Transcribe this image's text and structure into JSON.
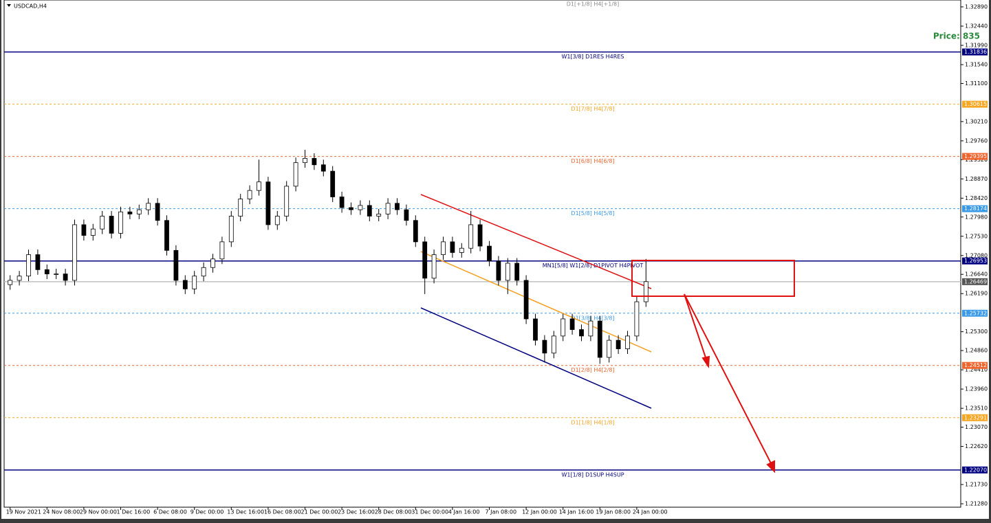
{
  "chart_data": {
    "type": "candlestick",
    "title": "USDCAD,H4",
    "annotation": "Price: 835",
    "top_label": "D1[+1/8] H4[+1/8]",
    "categories": [
      "19 Nov 2021",
      null,
      null,
      null,
      "24 Nov 08:00",
      null,
      null,
      null,
      "29 Nov 00:00",
      null,
      null,
      null,
      "1 Dec 16:00",
      null,
      null,
      null,
      "6 Dec 08:00",
      null,
      null,
      null,
      "9 Dec 00:00",
      null,
      null,
      null,
      "13 Dec 16:00",
      null,
      null,
      null,
      "16 Dec 08:00",
      null,
      null,
      null,
      "21 Dec 00:00",
      null,
      null,
      null,
      "23 Dec 16:00",
      null,
      null,
      null,
      "28 Dec 08:00",
      null,
      null,
      null,
      "31 Dec 00:00",
      null,
      null,
      null,
      "4 Jan 16:00",
      null,
      null,
      null,
      "7 Jan 08:00",
      null,
      null,
      null,
      "12 Jan 00:00",
      null,
      null,
      null,
      "14 Jan 16:00",
      null,
      null,
      null,
      "19 Jan 08:00",
      null,
      null,
      null,
      "24 Jan 00:00",
      null
    ],
    "open": [
      1.264,
      1.265,
      1.266,
      1.271,
      1.2675,
      1.2665,
      1.2665,
      1.265,
      1.278,
      1.2755,
      1.277,
      1.28,
      1.276,
      1.281,
      1.2805,
      1.2815,
      1.283,
      1.279,
      1.272,
      1.265,
      1.263,
      1.266,
      1.268,
      1.27,
      1.274,
      1.28,
      1.284,
      1.286,
      1.288,
      1.278,
      1.28,
      1.287,
      1.2925,
      1.2935,
      1.292,
      1.2905,
      1.2845,
      1.282,
      1.2815,
      1.2825,
      1.28,
      1.2805,
      1.283,
      1.2815,
      1.279,
      1.274,
      1.2655,
      1.271,
      1.274,
      1.2715,
      1.2725,
      1.278,
      1.273,
      1.2695,
      1.265,
      1.269,
      1.265,
      1.256,
      1.251,
      1.248,
      1.252,
      1.256,
      1.2535,
      1.252,
      1.2555,
      1.247,
      1.251,
      1.249,
      1.252,
      1.26
    ],
    "high": [
      1.2662,
      1.2672,
      1.2722,
      1.2722,
      1.2687,
      1.2677,
      1.2677,
      1.2792,
      1.2792,
      1.2782,
      1.2812,
      1.2812,
      1.2822,
      1.2822,
      1.2827,
      1.2842,
      1.2842,
      1.2802,
      1.2732,
      1.2662,
      1.2672,
      1.2692,
      1.2712,
      1.2752,
      1.2812,
      1.2852,
      1.2872,
      1.2932,
      1.2892,
      1.2812,
      1.2882,
      1.2937,
      1.2955,
      1.2947,
      1.2932,
      1.2917,
      1.2857,
      1.2832,
      1.2837,
      1.2837,
      1.2817,
      1.2842,
      1.2842,
      1.2827,
      1.2802,
      1.2752,
      1.2722,
      1.2752,
      1.2752,
      1.2737,
      1.2812,
      1.2792,
      1.2742,
      1.2707,
      1.2702,
      1.2702,
      1.2662,
      1.2572,
      1.2522,
      1.2532,
      1.2572,
      1.2572,
      1.2547,
      1.2567,
      1.2567,
      1.2522,
      1.2522,
      1.2532,
      1.2612,
      1.27
    ],
    "low": [
      1.2628,
      1.2638,
      1.2648,
      1.2663,
      1.2653,
      1.2653,
      1.2638,
      1.2638,
      1.2743,
      1.2743,
      1.2758,
      1.2748,
      1.2748,
      1.2793,
      1.2793,
      1.2803,
      1.2778,
      1.2708,
      1.2638,
      1.2618,
      1.2618,
      1.2648,
      1.2668,
      1.2688,
      1.2728,
      1.2788,
      1.2828,
      1.2848,
      1.2768,
      1.2768,
      1.2788,
      1.2858,
      1.2913,
      1.2908,
      1.2893,
      1.2833,
      1.2808,
      1.2803,
      1.2803,
      1.2788,
      1.2788,
      1.2793,
      1.2803,
      1.2778,
      1.2728,
      1.2618,
      1.2643,
      1.2698,
      1.2703,
      1.2703,
      1.2713,
      1.2718,
      1.2683,
      1.2638,
      1.2618,
      1.2638,
      1.2548,
      1.2498,
      1.2458,
      1.2468,
      1.2508,
      1.2523,
      1.2508,
      1.2508,
      1.2455,
      1.2458,
      1.2478,
      1.2478,
      1.2508,
      1.2588
    ],
    "close": [
      1.265,
      1.266,
      1.271,
      1.2675,
      1.2665,
      1.2665,
      1.265,
      1.278,
      1.2755,
      1.277,
      1.28,
      1.276,
      1.281,
      1.2805,
      1.2815,
      1.283,
      1.279,
      1.272,
      1.265,
      1.263,
      1.266,
      1.268,
      1.27,
      1.274,
      1.28,
      1.284,
      1.286,
      1.288,
      1.278,
      1.28,
      1.287,
      1.2925,
      1.2935,
      1.292,
      1.2905,
      1.2845,
      1.282,
      1.2815,
      1.2825,
      1.28,
      1.2805,
      1.283,
      1.2815,
      1.279,
      1.274,
      1.2655,
      1.271,
      1.274,
      1.2715,
      1.2725,
      1.278,
      1.273,
      1.2695,
      1.265,
      1.269,
      1.265,
      1.256,
      1.251,
      1.248,
      1.252,
      1.256,
      1.2535,
      1.252,
      1.2555,
      1.247,
      1.251,
      1.249,
      1.252,
      1.26,
      1.2647
    ],
    "ylim": [
      1.212,
      1.3305
    ],
    "yticks": [
      {
        "value": 1.3289,
        "label": "1.32890"
      },
      {
        "value": 1.3244,
        "label": "1.32440"
      },
      {
        "value": 1.3199,
        "label": "1.31990"
      },
      {
        "value": 1.3154,
        "label": "1.31540"
      },
      {
        "value": 1.311,
        "label": "1.31100"
      },
      {
        "value": 1.3021,
        "label": "1.30210"
      },
      {
        "value": 1.2976,
        "label": "1.29760"
      },
      {
        "value": 1.2932,
        "label": "1.29320"
      },
      {
        "value": 1.2887,
        "label": "1.28870"
      },
      {
        "value": 1.2842,
        "label": "1.28420"
      },
      {
        "value": 1.2798,
        "label": "1.27980"
      },
      {
        "value": 1.2753,
        "label": "1.27530"
      },
      {
        "value": 1.2708,
        "label": "1.27080"
      },
      {
        "value": 1.2664,
        "label": "1.26640"
      },
      {
        "value": 1.2619,
        "label": "1.26190"
      },
      {
        "value": 1.253,
        "label": "1.25300"
      },
      {
        "value": 1.2486,
        "label": "1.24860"
      },
      {
        "value": 1.2441,
        "label": "1.24410"
      },
      {
        "value": 1.2396,
        "label": "1.23960"
      },
      {
        "value": 1.2351,
        "label": "1.23510"
      },
      {
        "value": 1.2307,
        "label": "1.23070"
      },
      {
        "value": 1.2262,
        "label": "1.22620"
      },
      {
        "value": 1.2173,
        "label": "1.21730"
      },
      {
        "value": 1.2128,
        "label": "1.21280"
      }
    ],
    "levels": [
      {
        "value": 1.31836,
        "label": "1.31836",
        "text": "W1[3/8] D1RES H4RES",
        "color": "#000080",
        "style": "solid"
      },
      {
        "value": 1.30615,
        "label": "1.30615",
        "text": "D1[7/8] H4[7/8]",
        "color": "#f5a623",
        "style": "dashed"
      },
      {
        "value": 1.29395,
        "label": "1.29395",
        "text": "D1[6/8] H4[6/8]",
        "color": "#f0642d",
        "style": "dashed"
      },
      {
        "value": 1.28174,
        "label": "1.28174",
        "text": "D1[5/8] H4[5/8]",
        "color": "#3a9ae8",
        "style": "dashed"
      },
      {
        "value": 1.26953,
        "label": "1.26953",
        "text": "MN1[5/8] W1[2/8] D1PIVOT H4PIVOT",
        "color": "#000080",
        "style": "solid"
      },
      {
        "value": 1.26469,
        "label": "1.26469",
        "color": "#c0c0c0",
        "style": "solid"
      },
      {
        "value": 1.25732,
        "label": "1.25732",
        "text": "D1[3/8] H4[3/8]",
        "color": "#3a9ae8",
        "style": "dashed"
      },
      {
        "value": 1.24512,
        "label": "1.24512",
        "text": "D1[2/8] H4[2/8]",
        "color": "#f0642d",
        "style": "dashed"
      },
      {
        "value": 1.23291,
        "label": "1.23291",
        "text": "D1[1/8] H4[1/8]",
        "color": "#f5a623",
        "style": "dashed"
      },
      {
        "value": 1.2207,
        "label": "1.22070",
        "text": "W1[1/8] D1SUP H4SUP",
        "color": "#000080",
        "style": "solid"
      }
    ]
  }
}
